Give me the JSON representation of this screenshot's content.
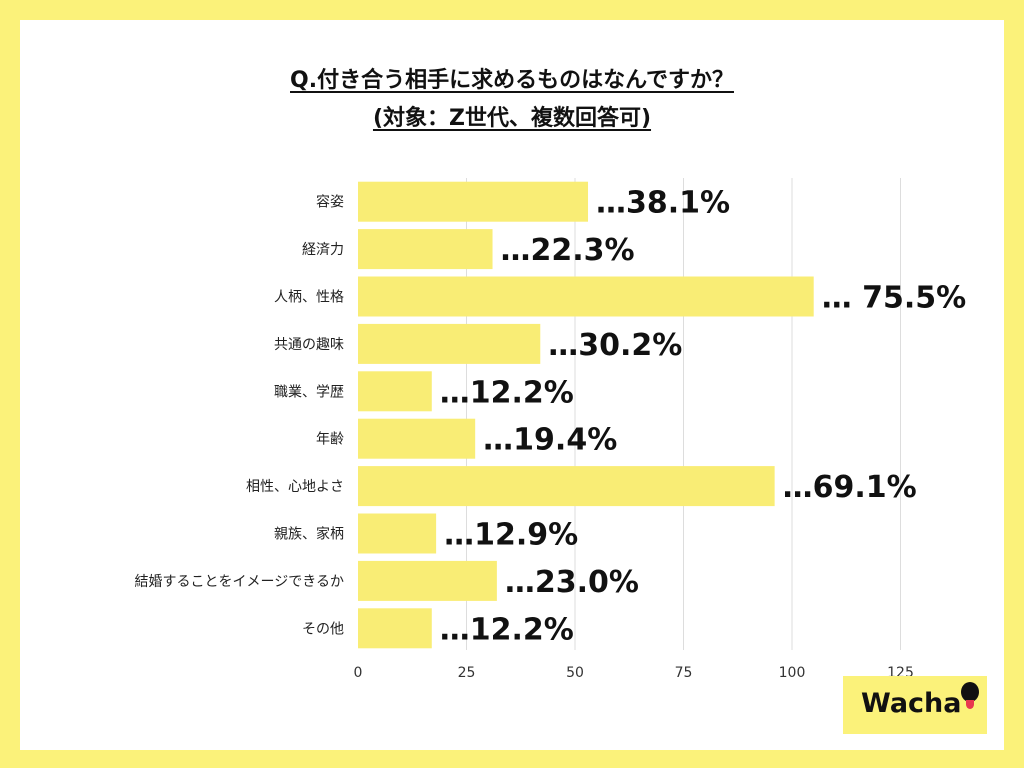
{
  "chart_data": {
    "type": "bar",
    "orientation": "horizontal",
    "title": "Q.付き合う相手に求めるものはなんですか？",
    "subtitle": "(対象：Z世代、複数回答可)",
    "categories": [
      "容姿",
      "経済力",
      "人柄、性格",
      "共通の趣味",
      "職業、学歴",
      "年齢",
      "相性、心地よさ",
      "親族、家柄",
      "結婚することをイメージできるか",
      "その他"
    ],
    "values": [
      53,
      31,
      105,
      42,
      17,
      27,
      96,
      18,
      32,
      17
    ],
    "data_labels": [
      "…38.1%",
      "…22.3%",
      "… 75.5%",
      "…30.2%",
      "…12.2%",
      "…19.4%",
      "…69.1%",
      "…12.9%",
      "…23.0%",
      "…12.2%"
    ],
    "xlim": [
      0,
      140
    ],
    "x_ticks": [
      0,
      25,
      50,
      75,
      100,
      125
    ],
    "grid": true,
    "bar_color": "#f9ed75",
    "grid_color": "#dddddd"
  },
  "brand": {
    "logo_text": "Wacha",
    "background": "#fbf27a"
  }
}
